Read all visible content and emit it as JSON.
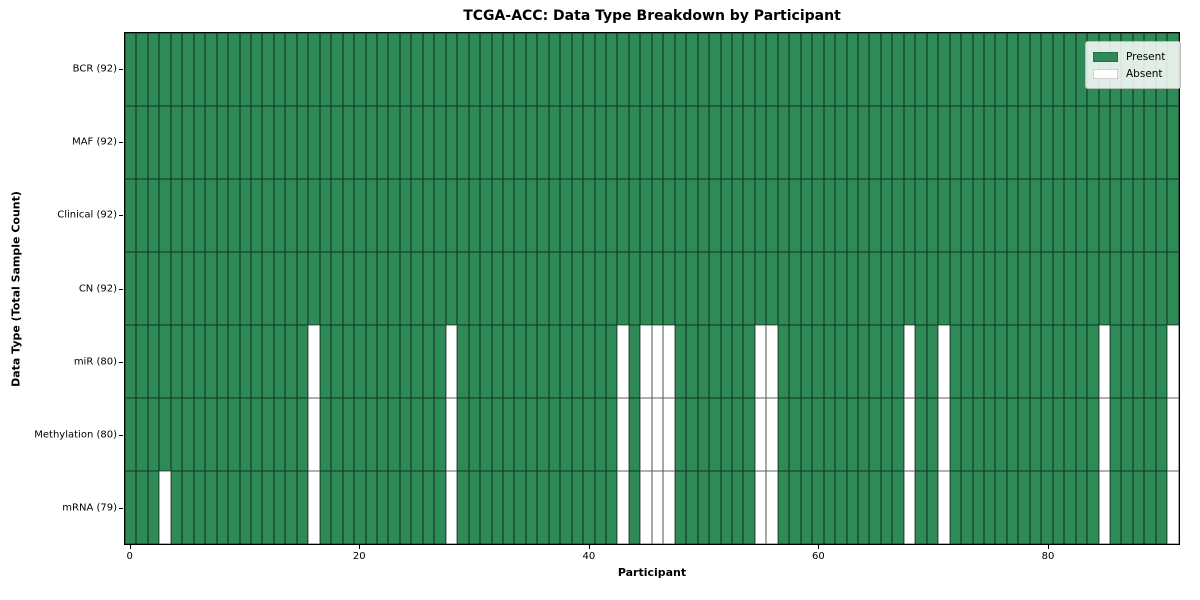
{
  "chart_data": {
    "type": "heatmap",
    "title": "TCGA-ACC: Data Type Breakdown by Participant",
    "xlabel": "Participant",
    "ylabel": "Data Type (Total Sample Count)",
    "n_participants": 92,
    "x_ticks": [
      0,
      20,
      40,
      60,
      80
    ],
    "x_range": [
      -0.5,
      91.5
    ],
    "grid": "cell-edges",
    "legend_position": "upper-right",
    "colors": {
      "present": "#2e8b57",
      "absent": "#ffffff",
      "cell_edge": "#1a1a1a"
    },
    "legend": [
      {
        "label": "Present",
        "color": "#2e8b57"
      },
      {
        "label": "Absent",
        "color": "#ffffff"
      }
    ],
    "rows": [
      {
        "data_type": "BCR",
        "label": "BCR (92)",
        "present_count": 92,
        "absent_participants": []
      },
      {
        "data_type": "MAF",
        "label": "MAF (92)",
        "present_count": 92,
        "absent_participants": []
      },
      {
        "data_type": "Clinical",
        "label": "Clinical (92)",
        "present_count": 92,
        "absent_participants": []
      },
      {
        "data_type": "CN",
        "label": "CN (92)",
        "present_count": 92,
        "absent_participants": []
      },
      {
        "data_type": "miR",
        "label": "miR (80)",
        "present_count": 80,
        "absent_participants": [
          16,
          28,
          43,
          45,
          46,
          47,
          55,
          56,
          68,
          71,
          85,
          91
        ]
      },
      {
        "data_type": "Methylation",
        "label": "Methylation (80)",
        "present_count": 80,
        "absent_participants": [
          16,
          28,
          43,
          45,
          46,
          47,
          55,
          56,
          68,
          71,
          85,
          91
        ]
      },
      {
        "data_type": "mRNA",
        "label": "mRNA (79)",
        "present_count": 79,
        "absent_participants": [
          3,
          16,
          28,
          43,
          45,
          46,
          47,
          55,
          56,
          68,
          71,
          85,
          91
        ]
      }
    ]
  }
}
